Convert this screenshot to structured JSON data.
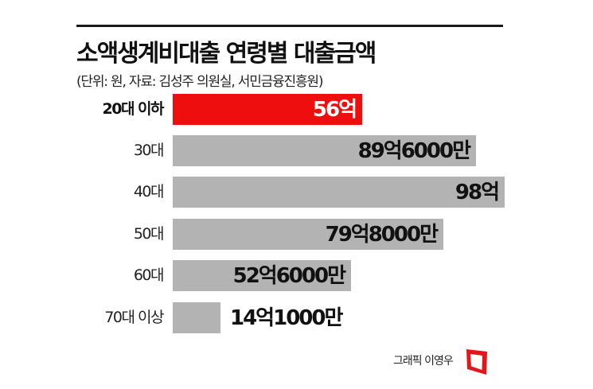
{
  "header": {
    "title": "소액생계비대출 연령별 대출금액",
    "subtitle": "(단위: 원, 자료: 김성주 의원실, 서민금융진흥원)"
  },
  "footer": {
    "credit": "그래픽 이영우"
  },
  "colors": {
    "highlight": "#ef0e0e",
    "bar": "#b3b3b3",
    "text": "#111111"
  },
  "rows": [
    {
      "label": "20대 이하",
      "value_label": "56억",
      "value": 56.0,
      "highlight": true
    },
    {
      "label": "30대",
      "value_label": "89억6000만",
      "value": 89.6,
      "highlight": false
    },
    {
      "label": "40대",
      "value_label": "98억",
      "value": 98.0,
      "highlight": false
    },
    {
      "label": "50대",
      "value_label": "79억8000만",
      "value": 79.8,
      "highlight": false
    },
    {
      "label": "60대",
      "value_label": "52억6000만",
      "value": 52.6,
      "highlight": false
    },
    {
      "label": "70대 이상",
      "value_label": "14억1000만",
      "value": 14.1,
      "highlight": false
    }
  ],
  "chart_data": {
    "type": "bar",
    "orientation": "horizontal",
    "title": "소액생계비대출 연령별 대출금액",
    "subtitle": "(단위: 원, 자료: 김성주 의원실, 서민금융진흥원)",
    "xlabel": "",
    "ylabel": "",
    "unit": "억 원",
    "categories": [
      "20대 이하",
      "30대",
      "40대",
      "50대",
      "60대",
      "70대 이상"
    ],
    "values": [
      56.0,
      89.6,
      98.0,
      79.8,
      52.6,
      14.1
    ],
    "value_labels": [
      "56억",
      "89억6000만",
      "98억",
      "79억8000만",
      "52억6000만",
      "14억1000만"
    ],
    "highlighted_category": "20대 이하",
    "grid": false,
    "legend": null,
    "credit": "그래픽 이영우"
  }
}
